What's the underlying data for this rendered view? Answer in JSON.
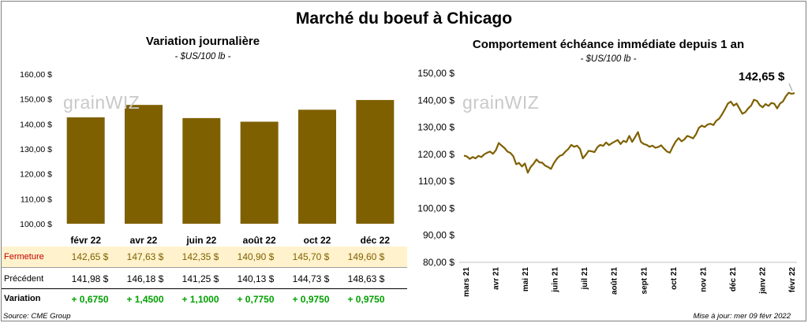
{
  "title": "Marché du boeuf à Chicago",
  "left": {
    "subtitle": "Variation  journalière",
    "unit": "- $US/100 lb -"
  },
  "right": {
    "subtitle": "Comportement  échéance immédiate depuis 1 an",
    "unit": "- $US/100 lb -",
    "last_value_label": "142,65 $"
  },
  "watermark": "grain",
  "table": {
    "labels": {
      "close": "Fermeture",
      "previous": "Précédent",
      "change": "Variation"
    },
    "close": [
      "142,65  $",
      "147,63  $",
      "142,35  $",
      "140,90  $",
      "145,70  $",
      "149,60  $"
    ],
    "previous": [
      "141,98  $",
      "146,18  $",
      "141,25  $",
      "140,13  $",
      "144,73  $",
      "148,63  $"
    ],
    "change": [
      "+ 0,6750",
      "+ 1,4500",
      "+ 1,1000",
      "+ 0,7750",
      "+ 0,9750",
      "+ 0,9750"
    ]
  },
  "footer": {
    "source": "Source: CME Group",
    "updated": "Mise à jour: mer 09 févr 2022"
  },
  "colors": {
    "bar": "#7f6000",
    "line": "#7f6000",
    "highlight": "#fff2cc",
    "positive": "#00a000"
  },
  "chart_data": [
    {
      "type": "bar",
      "categories": [
        "févr 22",
        "avr 22",
        "juin 22",
        "août 22",
        "oct 22",
        "déc 22"
      ],
      "values": [
        142.65,
        147.63,
        142.35,
        140.9,
        145.7,
        149.6
      ],
      "ylim": [
        100,
        160
      ],
      "yticks": [
        "100,00 $",
        "110,00 $",
        "120,00 $",
        "130,00 $",
        "140,00 $",
        "150,00 $",
        "160,00 $"
      ],
      "grid": false
    },
    {
      "type": "line",
      "x_labels": [
        "mars 21",
        "avr 21",
        "mai 21",
        "juin 21",
        "juil 21",
        "août 21",
        "sept 21",
        "oct 21",
        "nov 21",
        "déc 21",
        "janv 22",
        "févr 22"
      ],
      "values": [
        119.5,
        119.2,
        118.3,
        119.0,
        118.5,
        119.4,
        119.0,
        120.0,
        120.6,
        121.0,
        120.2,
        121.5,
        124.2,
        123.2,
        122.3,
        121.0,
        120.5,
        119.3,
        116.3,
        116.8,
        115.5,
        116.6,
        113.2,
        115.3,
        116.5,
        118.1,
        117.0,
        116.9,
        115.8,
        115.3,
        114.6,
        116.7,
        118.3,
        119.4,
        119.8,
        121.0,
        122.0,
        123.5,
        122.8,
        123.2,
        122.0,
        118.5,
        119.8,
        121.3,
        121.1,
        120.8,
        122.6,
        123.5,
        123.1,
        124.4,
        123.4,
        124.1,
        124.7,
        125.3,
        123.8,
        125.0,
        124.5,
        126.8,
        124.6,
        126.4,
        128.2,
        124.6,
        123.8,
        123.5,
        122.8,
        123.2,
        122.4,
        122.7,
        123.3,
        122.1,
        121.0,
        120.6,
        122.8,
        124.7,
        126.0,
        124.8,
        125.5,
        126.8,
        126.4,
        125.9,
        127.4,
        129.8,
        130.6,
        130.1,
        131.0,
        131.3,
        130.8,
        132.4,
        133.2,
        134.8,
        136.7,
        138.8,
        139.5,
        138.0,
        138.8,
        136.9,
        135.0,
        135.6,
        137.0,
        138.0,
        140.2,
        139.8,
        138.2,
        137.4,
        138.6,
        137.9,
        139.0,
        138.7,
        137.0,
        138.8,
        139.6,
        141.5,
        142.8,
        142.4,
        142.65
      ],
      "ylim": [
        80,
        150
      ],
      "yticks": [
        "80,00 $",
        "90,00 $",
        "100,00 $",
        "110,00 $",
        "120,00 $",
        "130,00 $",
        "140,00 $",
        "150,00 $"
      ],
      "grid": false
    }
  ]
}
